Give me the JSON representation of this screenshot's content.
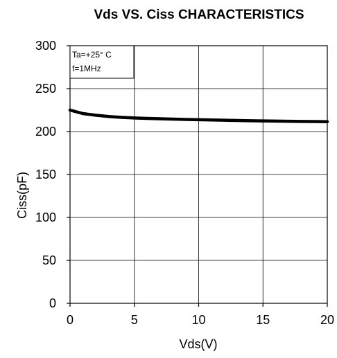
{
  "chart_data": {
    "type": "line",
    "title": "Vds  VS. Ciss CHARACTERISTICS",
    "xlabel": "Vds(V)",
    "ylabel": "Ciss(pF)",
    "xlim": [
      0,
      20
    ],
    "ylim": [
      0,
      300
    ],
    "xticks": [
      0,
      5,
      10,
      15,
      20
    ],
    "yticks": [
      0,
      50,
      100,
      150,
      200,
      250,
      300
    ],
    "grid": true,
    "annotation_lines": [
      "Ta=+25°  C",
      "f=1MHz"
    ],
    "annotation_placement": "top-left",
    "series": [
      {
        "color": "#000000",
        "x": [
          0,
          0.5,
          1,
          1.5,
          2,
          3,
          4,
          5,
          6,
          7,
          8,
          9,
          10,
          11,
          12,
          13,
          14,
          15,
          16,
          17,
          18,
          19,
          20
        ],
        "y": [
          225,
          223,
          221,
          220,
          219,
          217.5,
          216.5,
          215.8,
          215.3,
          214.9,
          214.5,
          214.1,
          213.8,
          213.5,
          213.2,
          212.9,
          212.6,
          212.4,
          212.2,
          212.0,
          211.8,
          211.7,
          211.5
        ]
      }
    ]
  }
}
